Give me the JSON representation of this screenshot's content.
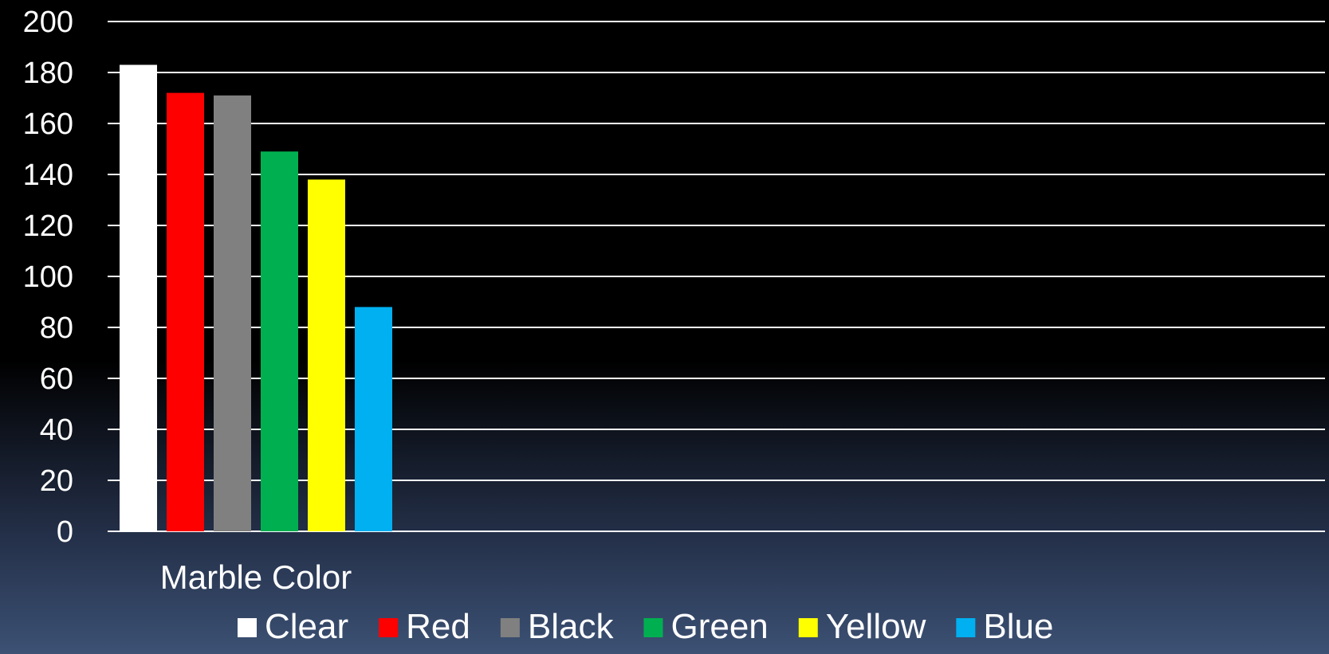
{
  "chart_data": {
    "type": "bar",
    "categories": [
      "Marble Color"
    ],
    "series": [
      {
        "name": "Clear",
        "values": [
          183
        ],
        "color": "#ffffff"
      },
      {
        "name": "Red",
        "values": [
          172
        ],
        "color": "#ff0000"
      },
      {
        "name": "Black",
        "values": [
          171
        ],
        "color": "#808080"
      },
      {
        "name": "Green",
        "values": [
          149
        ],
        "color": "#00b050"
      },
      {
        "name": "Yellow",
        "values": [
          138
        ],
        "color": "#ffff00"
      },
      {
        "name": "Blue",
        "values": [
          88
        ],
        "color": "#00b0f0"
      }
    ],
    "ylim": [
      0,
      200
    ],
    "yticks": [
      0,
      20,
      40,
      60,
      80,
      100,
      120,
      140,
      160,
      180,
      200
    ],
    "grid": true,
    "legend_position": "bottom",
    "title": "",
    "xlabel": "",
    "ylabel": ""
  }
}
